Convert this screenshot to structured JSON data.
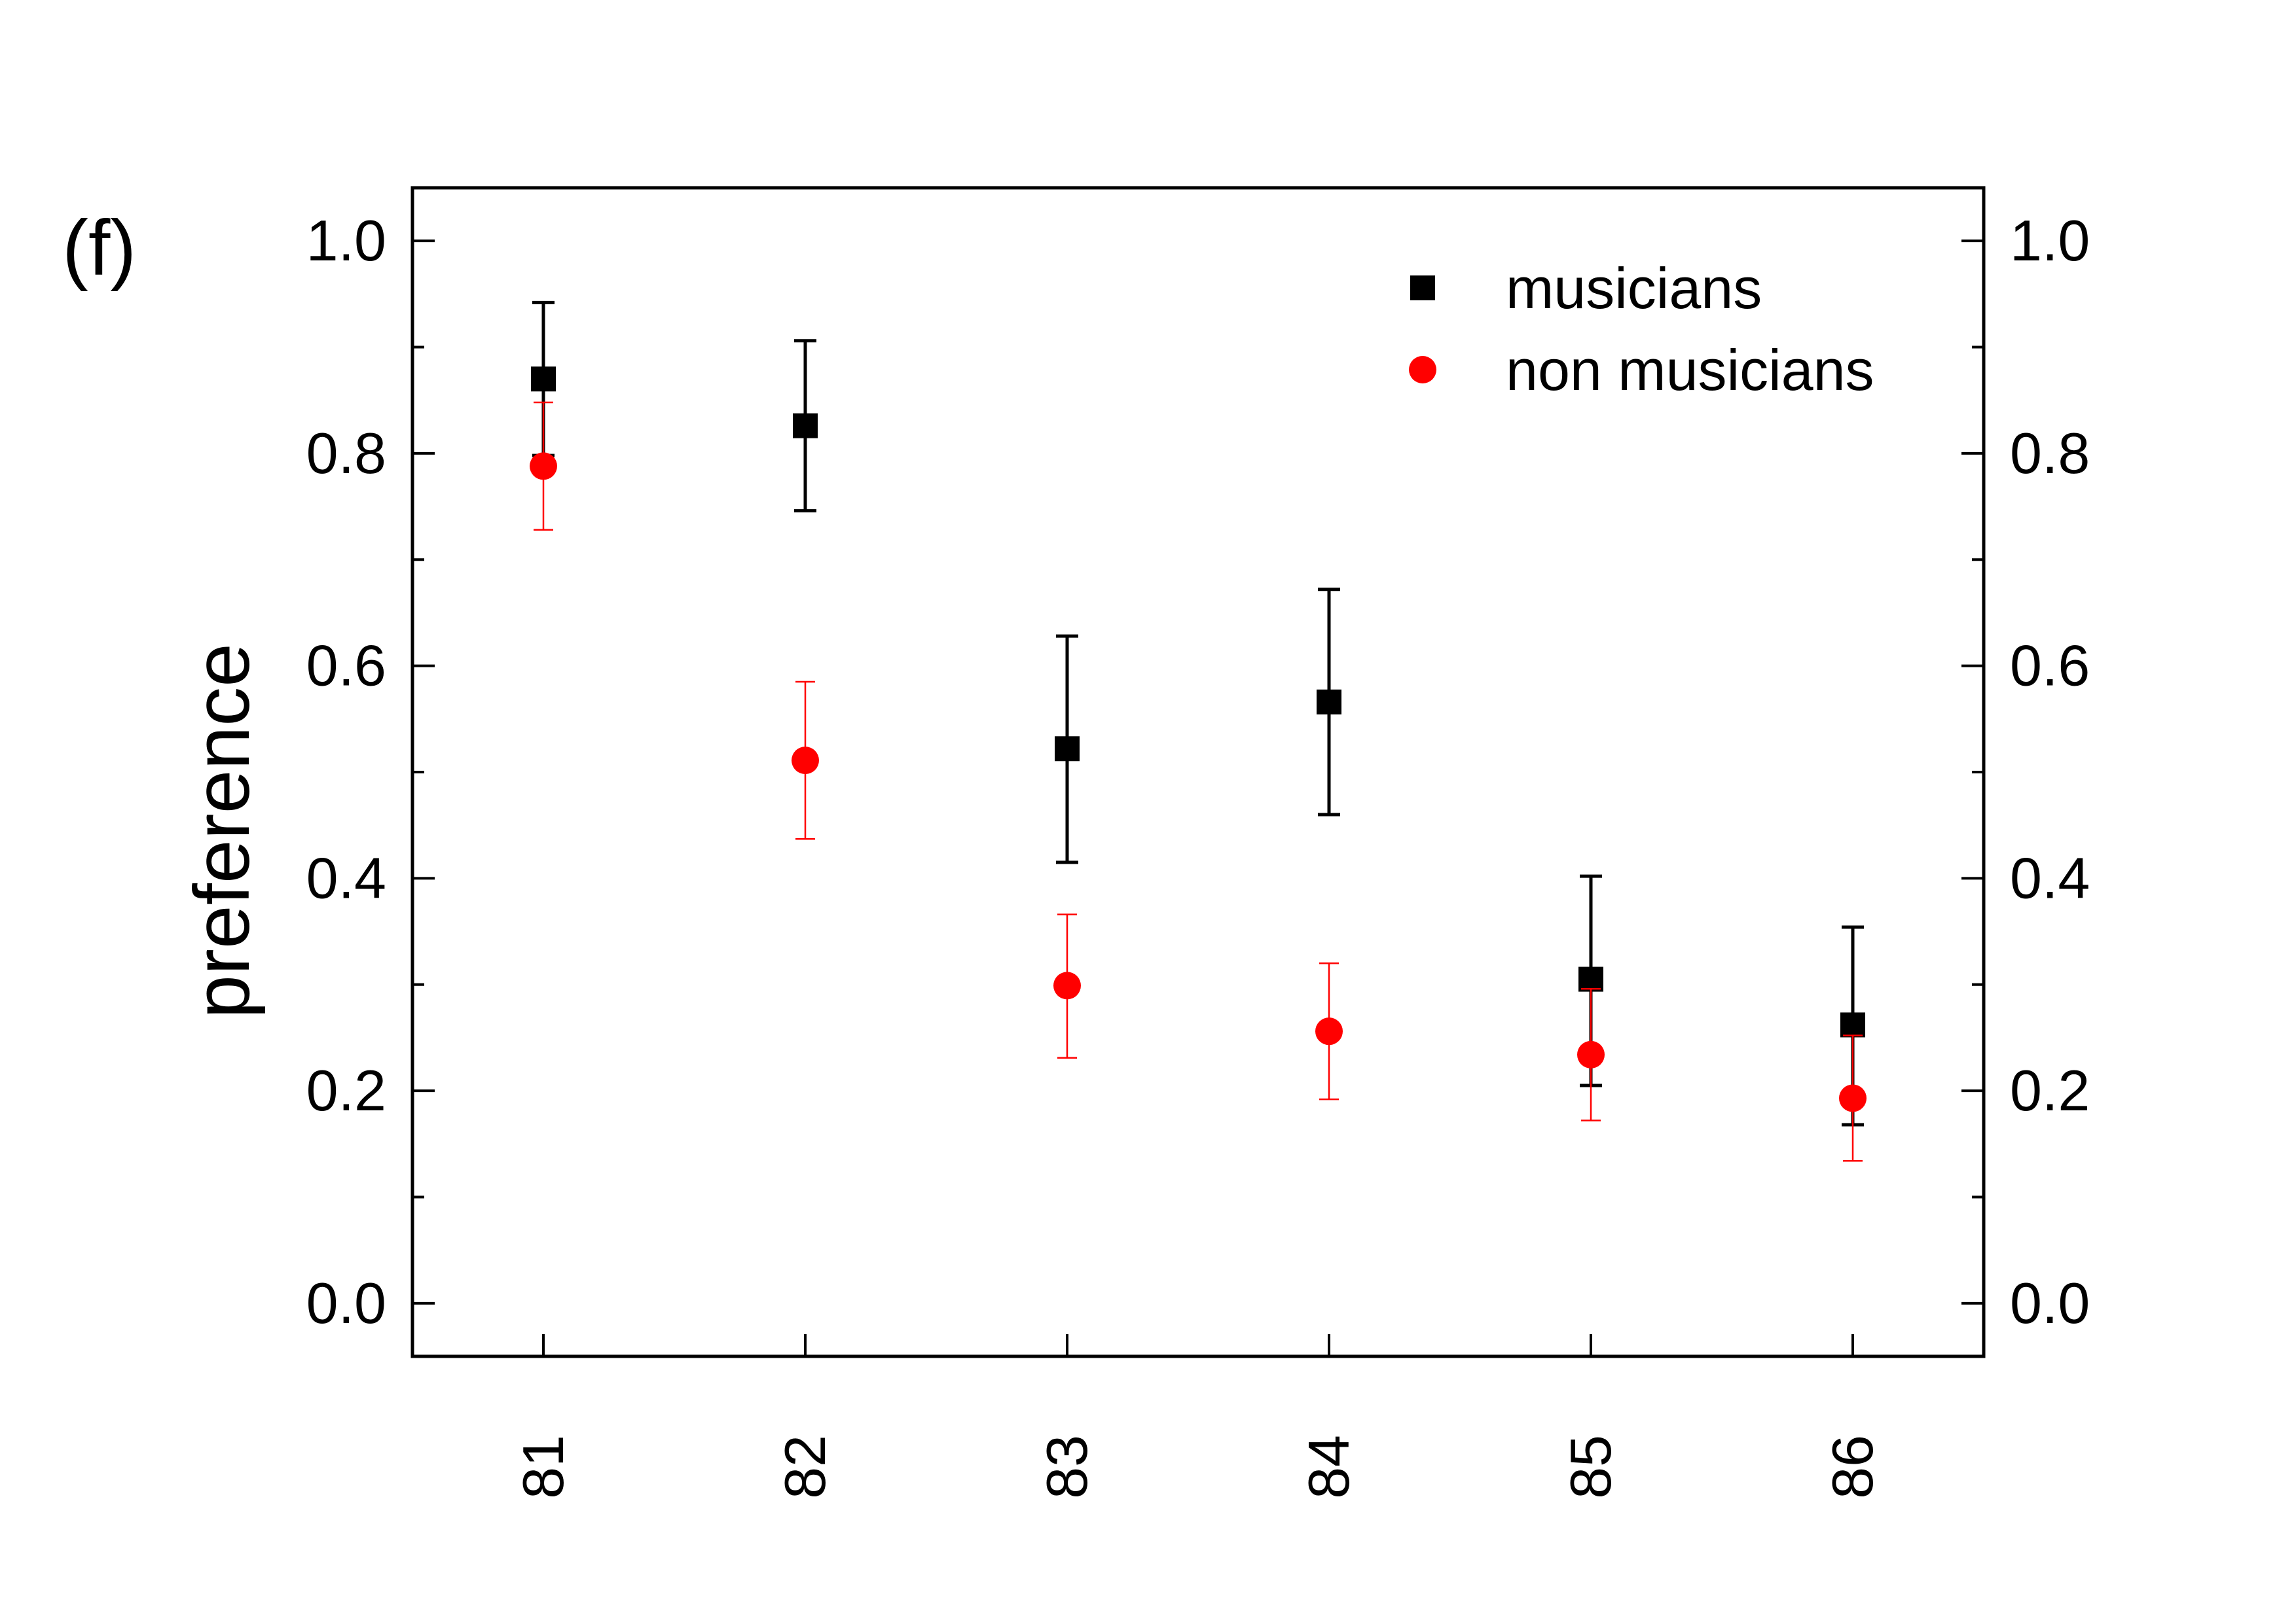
{
  "panel_label": "(f)",
  "chart_data": {
    "type": "scatter",
    "title": "",
    "xlabel": "",
    "ylabel": "preference",
    "categories": [
      "81",
      "82",
      "83",
      "84",
      "85",
      "86"
    ],
    "ylim": [
      -0.05,
      1.05
    ],
    "yticks": [
      0.0,
      0.2,
      0.4,
      0.6,
      0.8,
      1.0
    ],
    "ytick_labels": [
      "0.0",
      "0.2",
      "0.4",
      "0.6",
      "0.8",
      "1.0"
    ],
    "yminor_step": 0.1,
    "grid": false,
    "legend_position": "top-right",
    "mirror_right_axis": true,
    "series": [
      {
        "name": "musicians",
        "marker": "square",
        "color": "#000000",
        "values": [
          0.87,
          0.826,
          0.522,
          0.566,
          0.305,
          0.262
        ],
        "err_low": [
          0.798,
          0.746,
          0.415,
          0.46,
          0.205,
          0.168
        ],
        "err_high": [
          0.942,
          0.906,
          0.628,
          0.672,
          0.402,
          0.354
        ]
      },
      {
        "name": "non musicians",
        "marker": "circle",
        "color": "#ff0000",
        "values": [
          0.788,
          0.511,
          0.299,
          0.256,
          0.234,
          0.193
        ],
        "err_low": [
          0.728,
          0.437,
          0.231,
          0.192,
          0.172,
          0.134
        ],
        "err_high": [
          0.848,
          0.585,
          0.366,
          0.32,
          0.296,
          0.252
        ]
      }
    ]
  }
}
